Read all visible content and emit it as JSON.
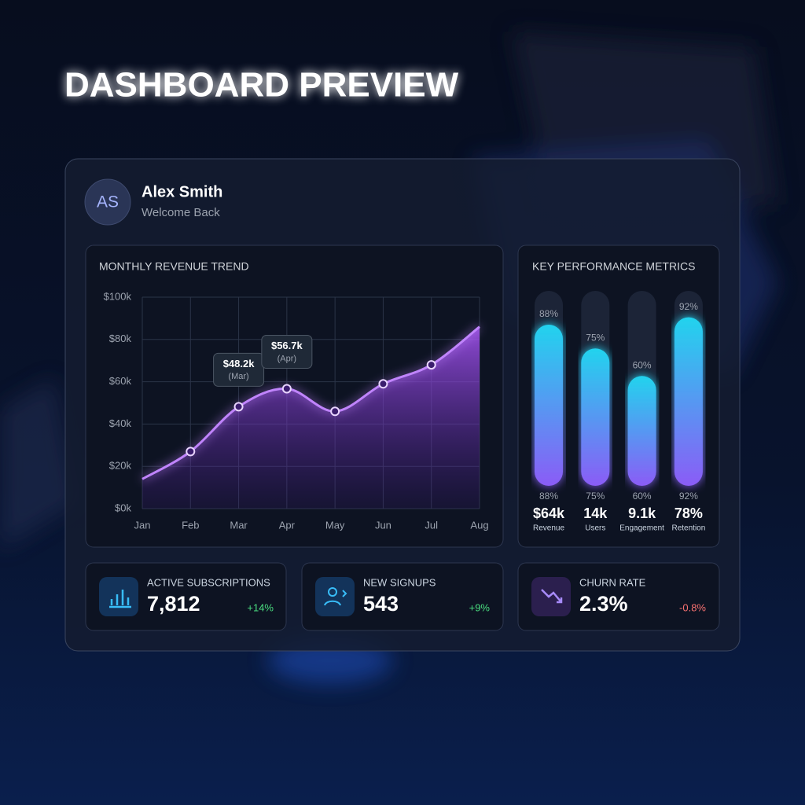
{
  "header": {
    "title": "DASHBOARD PREVIEW"
  },
  "user": {
    "initials": "AS",
    "name": "Alex Smith",
    "greeting": "Welcome Back"
  },
  "chart_data": [
    {
      "type": "line",
      "title": "MONTHLY REVENUE TREND",
      "categories": [
        "Jan",
        "Feb",
        "Mar",
        "Apr",
        "May",
        "Jun",
        "Jul",
        "Aug"
      ],
      "values": [
        14,
        27,
        48.2,
        56.7,
        46,
        59,
        68,
        86
      ],
      "value_labels": [
        null,
        null,
        "$48.2k",
        "$56.7k",
        null,
        null,
        null,
        null
      ],
      "value_notes": [
        null,
        null,
        "(Mar)",
        "(Apr)",
        null,
        null,
        null,
        null
      ],
      "ylim": [
        0,
        100
      ],
      "yticks": [
        {
          "value": 0,
          "label": "$0k"
        },
        {
          "value": 20,
          "label": "$20k"
        },
        {
          "value": 40,
          "label": "$40k"
        },
        {
          "value": 60,
          "label": "$60k"
        },
        {
          "value": 80,
          "label": "$80k"
        },
        {
          "value": 100,
          "label": "$100k"
        }
      ],
      "color": "#c084fc",
      "grid": true
    },
    {
      "type": "bar",
      "title": "KEY PERFORMANCE METRICS",
      "categories": [
        "Revenue",
        "Users",
        "Engagement",
        "Retention"
      ],
      "values": [
        88,
        75,
        60,
        92
      ],
      "value_labels": [
        "88%",
        "75%",
        "60%",
        "92%"
      ],
      "stats": [
        "$64k",
        "14k",
        "9.1k",
        "78%"
      ],
      "ylim": [
        0,
        100
      ],
      "colors": [
        "#22d3ee",
        "#8b5cf6"
      ]
    }
  ],
  "cards": [
    {
      "title": "ACTIVE SUBSCRIPTIONS",
      "value": "7,812",
      "change": "+14%",
      "change_color": "#4ade80"
    },
    {
      "title": "NEW SIGNUPS",
      "value": "543",
      "change": "+9%",
      "change_color": "#4ade80"
    },
    {
      "title": "CHURN RATE",
      "value": "2.3%",
      "change": "-0.8%",
      "change_color": "#f87171"
    }
  ]
}
